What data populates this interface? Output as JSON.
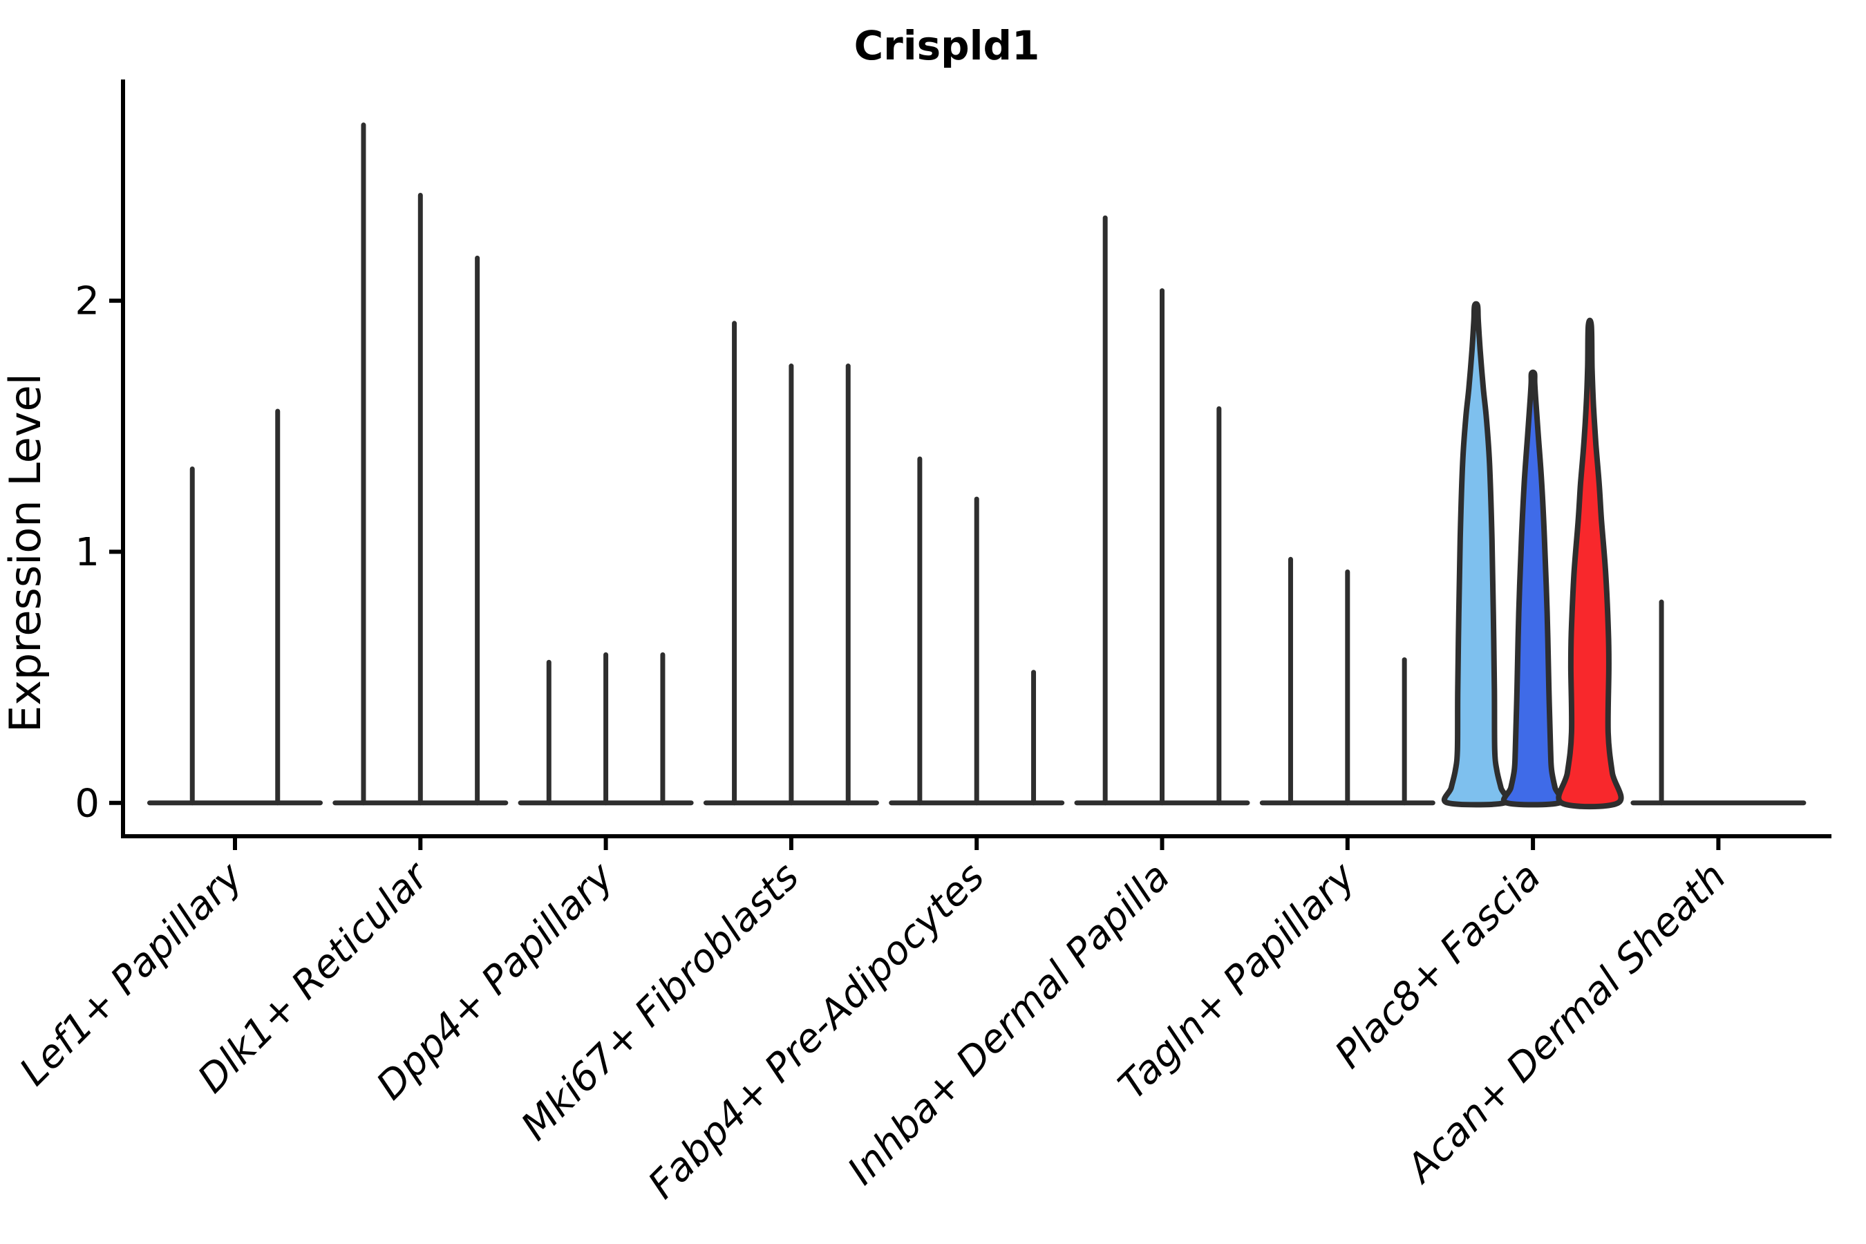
{
  "chart_data": {
    "type": "violin",
    "title": "Crispld1",
    "ylabel": "Expression Level",
    "xlabel": "",
    "yticks": [
      0,
      1,
      2
    ],
    "ylim": [
      0,
      2.88
    ],
    "grid": false,
    "legend": "none",
    "categories": [
      "Lef1+ Papillary",
      "Dlk1+ Reticular",
      "Dpp4+ Papillary",
      "Mki67+ Fibroblasts",
      "Fabp4+ Pre-Adipocytes",
      "Inhba+ Dermal Papilla",
      "Tagln+ Papillary",
      "Plac8+ Fascia",
      "Acan+ Dermal Sheath"
    ],
    "highlight": {
      "group": "Plac8+ Fascia",
      "fills": [
        "#7EC0EE",
        "#3F6BE8",
        "#F8282C"
      ]
    },
    "colors": {
      "outline": "#2E2E2E",
      "axis": "#000000",
      "background": "#FFFFFF"
    },
    "series": [
      {
        "category": "Lef1+ Papillary",
        "violins": [
          {
            "max": 1.33
          },
          {
            "max": 1.56
          }
        ]
      },
      {
        "category": "Dlk1+ Reticular",
        "violins": [
          {
            "max": 2.7
          },
          {
            "max": 2.42
          },
          {
            "max": 2.17
          }
        ]
      },
      {
        "category": "Dpp4+ Papillary",
        "violins": [
          {
            "max": 0.56
          },
          {
            "max": 0.59
          },
          {
            "max": 0.59
          }
        ]
      },
      {
        "category": "Mki67+ Fibroblasts",
        "violins": [
          {
            "max": 1.91
          },
          {
            "max": 1.74
          },
          {
            "max": 1.74
          }
        ]
      },
      {
        "category": "Fabp4+ Pre-Adipocytes",
        "violins": [
          {
            "max": 1.37
          },
          {
            "max": 1.21
          },
          {
            "max": 0.52
          }
        ]
      },
      {
        "category": "Inhba+ Dermal Papilla",
        "violins": [
          {
            "max": 2.33
          },
          {
            "max": 2.04
          },
          {
            "max": 1.57
          }
        ]
      },
      {
        "category": "Tagln+ Papillary",
        "violins": [
          {
            "max": 0.97
          },
          {
            "max": 0.92
          },
          {
            "max": 0.57
          }
        ]
      },
      {
        "category": "Plac8+ Fascia",
        "violins": [
          {
            "max": 1.98,
            "fill": "#7EC0EE",
            "profile": [
              [
                0,
                41
              ],
              [
                0.06,
                36
              ],
              [
                0.13,
                30
              ],
              [
                0.21,
                27
              ],
              [
                0.45,
                26.5
              ],
              [
                0.75,
                25
              ],
              [
                1.05,
                23
              ],
              [
                1.35,
                19.5
              ],
              [
                1.53,
                15
              ],
              [
                1.65,
                10.5
              ],
              [
                1.8,
                6
              ],
              [
                1.92,
                3.2
              ],
              [
                1.98,
                2.2
              ]
            ]
          },
          {
            "max": 1.71,
            "fill": "#3F6BE8",
            "profile": [
              [
                0,
                38
              ],
              [
                0.06,
                32
              ],
              [
                0.13,
                27
              ],
              [
                0.21,
                25.5
              ],
              [
                0.46,
                23
              ],
              [
                0.76,
                20.5
              ],
              [
                1.06,
                16.5
              ],
              [
                1.28,
                12.5
              ],
              [
                1.46,
                7.8
              ],
              [
                1.58,
                4.7
              ],
              [
                1.67,
                2.6
              ],
              [
                1.71,
                2.2
              ]
            ]
          },
          {
            "max": 1.9,
            "fill": "#F8282C",
            "profile": [
              [
                0,
                41
              ],
              [
                0.12,
                32.5
              ],
              [
                0.28,
                26.5
              ],
              [
                0.54,
                27.5
              ],
              [
                0.68,
                26.8
              ],
              [
                0.91,
                23
              ],
              [
                1.13,
                16.7
              ],
              [
                1.27,
                13.5
              ],
              [
                1.43,
                8.7
              ],
              [
                1.58,
                5.3
              ],
              [
                1.73,
                3.2
              ],
              [
                1.9,
                2.2
              ]
            ]
          }
        ]
      },
      {
        "category": "Acan+ Dermal Sheath",
        "violins": [
          {
            "max": 0.8
          },
          {
            "max": 0
          },
          {
            "max": 0
          }
        ]
      }
    ]
  }
}
